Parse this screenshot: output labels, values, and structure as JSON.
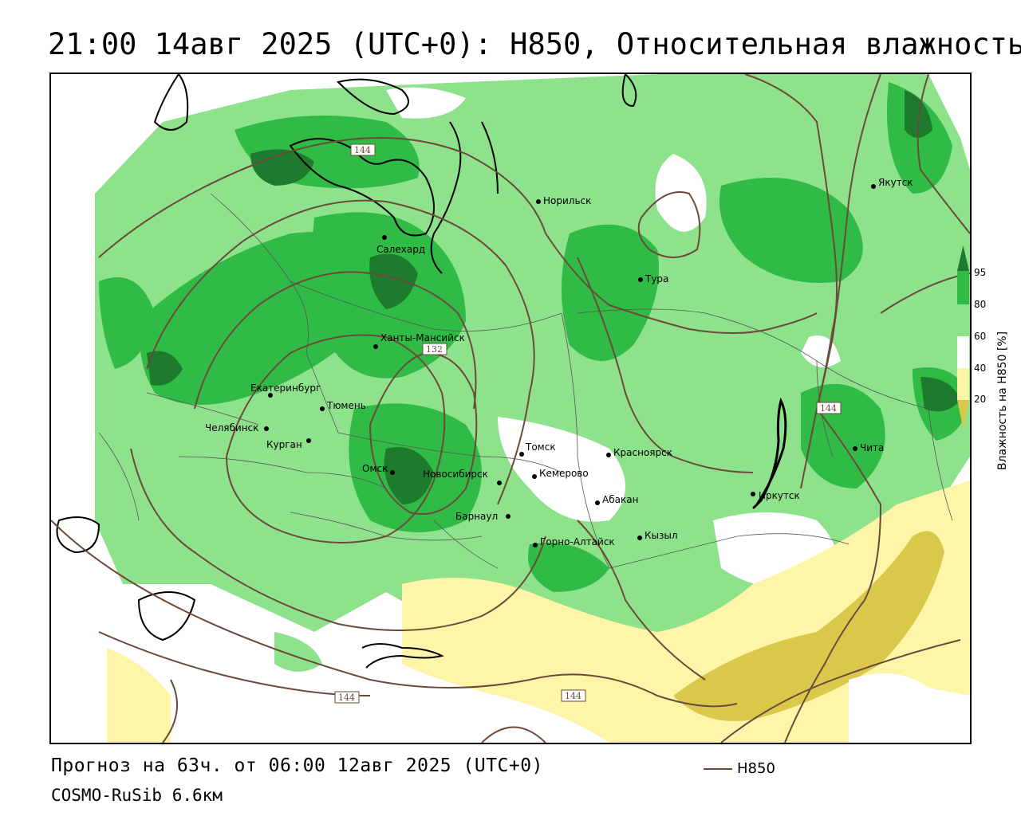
{
  "title": "21:00 14авг 2025 (UTC+0): H850, Относительная влажность",
  "footer": {
    "forecast": "Прогноз на 63ч. от 06:00 12авг 2025 (UTC+0)",
    "model": "COSMO-RuSib 6.6км"
  },
  "series_legend": {
    "name": "H850",
    "color": "#6b4a3a"
  },
  "colorbar": {
    "title": "Влажность на H850 [%]",
    "ticks": [
      "95",
      "80",
      "60",
      "40",
      "20"
    ],
    "colors": {
      "ge95": "#1e7a2c",
      "80_95": "#2fbb45",
      "60_80": "#8ee28c",
      "40_60": "#ffffff",
      "20_40": "#fff5a8",
      "lt20": "#d9c84a"
    }
  },
  "cities": [
    {
      "name": "Норильск"
    },
    {
      "name": "Якутск"
    },
    {
      "name": "Салехард"
    },
    {
      "name": "Тура"
    },
    {
      "name": "Ханты-Мансийск"
    },
    {
      "name": "Екатеринбург"
    },
    {
      "name": "Тюмень"
    },
    {
      "name": "Челябинск"
    },
    {
      "name": "Курган"
    },
    {
      "name": "Омск"
    },
    {
      "name": "Новосибирск"
    },
    {
      "name": "Томск"
    },
    {
      "name": "Кемерово"
    },
    {
      "name": "Красноярск"
    },
    {
      "name": "Барнаул"
    },
    {
      "name": "Абакан"
    },
    {
      "name": "Горно-Алтайск"
    },
    {
      "name": "Кызыл"
    },
    {
      "name": "Иркутск"
    },
    {
      "name": "Чита"
    }
  ],
  "contour_labels": [
    "144",
    "132",
    "144",
    "144",
    "144"
  ]
}
